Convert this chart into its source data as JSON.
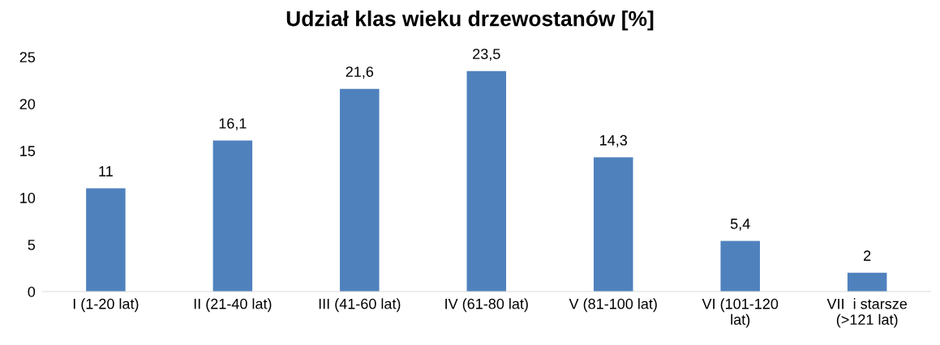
{
  "chart_data": {
    "type": "bar",
    "title": "Udział klas wieku drzewostanów [%]",
    "categories": [
      "I (1-20 lat)",
      "II (21-40 lat)",
      "III (41-60 lat)",
      "IV (61-80 lat)",
      "V (81-100 lat)",
      "VI (101-120\nlat)",
      "VII  i starsze\n(>121 lat)"
    ],
    "values": [
      11,
      16.1,
      21.6,
      23.5,
      14.3,
      5.4,
      2
    ],
    "value_labels": [
      "11",
      "16,1",
      "21,6",
      "23,5",
      "14,3",
      "5,4",
      "2"
    ],
    "color": "#4f81bd",
    "ylim": [
      0,
      25
    ],
    "yticks": [
      0,
      5,
      10,
      15,
      20,
      25
    ],
    "grid": false
  }
}
